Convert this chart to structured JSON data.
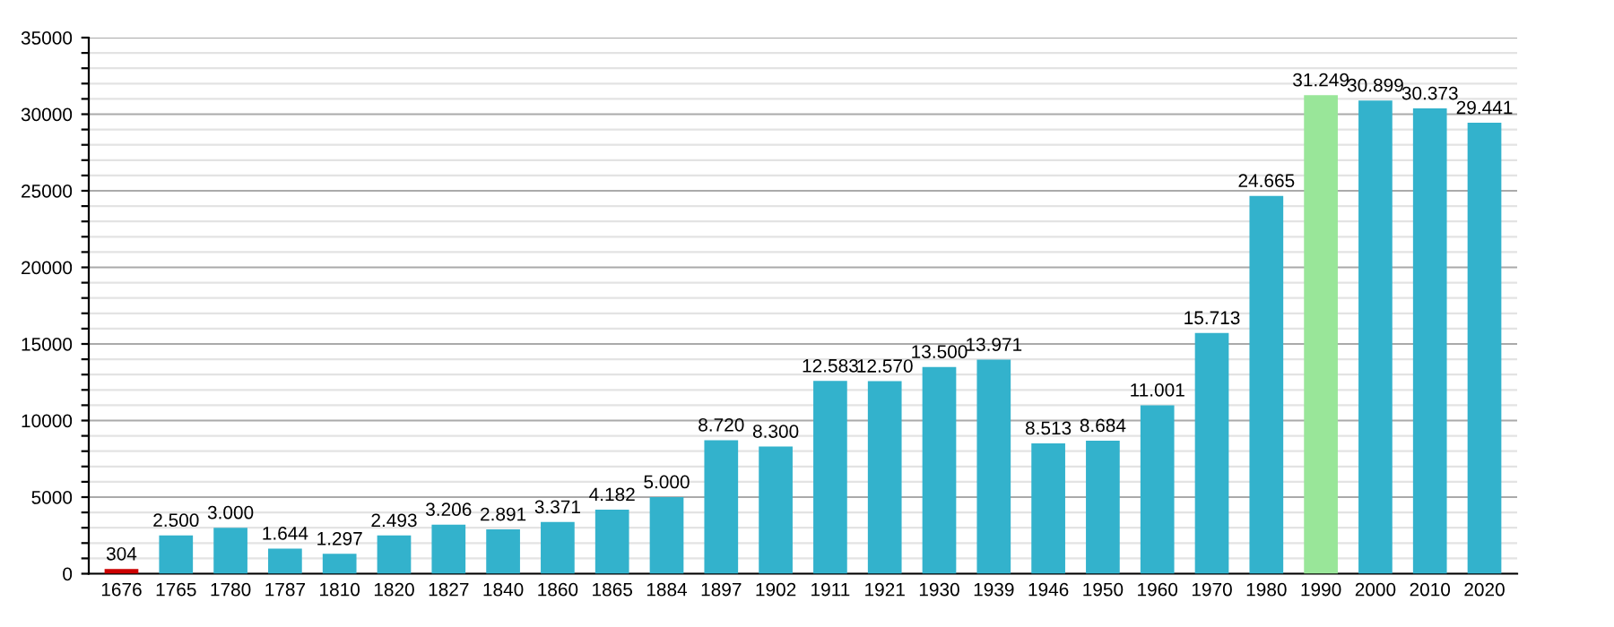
{
  "chart_data": {
    "type": "bar",
    "categories": [
      "1676",
      "1765",
      "1780",
      "1787",
      "1810",
      "1820",
      "1827",
      "1840",
      "1860",
      "1865",
      "1884",
      "1897",
      "1902",
      "1911",
      "1921",
      "1930",
      "1939",
      "1946",
      "1950",
      "1960",
      "1970",
      "1980",
      "1990",
      "2000",
      "2010",
      "2020"
    ],
    "values": [
      304,
      2500,
      3000,
      1644,
      1297,
      2493,
      3206,
      2891,
      3371,
      4182,
      5000,
      8720,
      8300,
      12583,
      12570,
      13500,
      13971,
      8513,
      8684,
      11001,
      15713,
      24665,
      31249,
      30899,
      30373,
      29441
    ],
    "value_labels": [
      "304",
      "2.500",
      "3.000",
      "1.644",
      "1.297",
      "2.493",
      "3.206",
      "2.891",
      "3.371",
      "4.182",
      "5.000",
      "8.720",
      "8.300",
      "12.583",
      "12.570",
      "13.500",
      "13.971",
      "8.513",
      "8.684",
      "11.001",
      "15.713",
      "24.665",
      "31.249",
      "30.899",
      "30.373",
      "29.441"
    ],
    "colors": [
      "#cc0000",
      "#33b2cc",
      "#33b2cc",
      "#33b2cc",
      "#33b2cc",
      "#33b2cc",
      "#33b2cc",
      "#33b2cc",
      "#33b2cc",
      "#33b2cc",
      "#33b2cc",
      "#33b2cc",
      "#33b2cc",
      "#33b2cc",
      "#33b2cc",
      "#33b2cc",
      "#33b2cc",
      "#33b2cc",
      "#33b2cc",
      "#33b2cc",
      "#33b2cc",
      "#33b2cc",
      "#99e699",
      "#33b2cc",
      "#33b2cc",
      "#33b2cc"
    ],
    "ylim": [
      0,
      35000
    ],
    "yticks": [
      0,
      {
        "value": 1000,
        "label": null
      },
      {
        "value": 2000,
        "label": null
      },
      {
        "value": 3000,
        "label": null
      },
      {
        "value": 4000,
        "label": null
      },
      5000,
      {
        "value": 6000,
        "label": null
      },
      {
        "value": 7000,
        "label": null
      },
      {
        "value": 8000,
        "label": null
      },
      {
        "value": 9000,
        "label": null
      },
      10000,
      {
        "value": 11000,
        "label": null
      },
      {
        "value": 12000,
        "label": null
      },
      {
        "value": 13000,
        "label": null
      },
      {
        "value": 14000,
        "label": null
      },
      15000,
      {
        "value": 16000,
        "label": null
      },
      {
        "value": 17000,
        "label": null
      },
      {
        "value": 18000,
        "label": null
      },
      {
        "value": 19000,
        "label": null
      },
      20000,
      {
        "value": 21000,
        "label": null
      },
      {
        "value": 22000,
        "label": null
      },
      {
        "value": 23000,
        "label": null
      },
      {
        "value": 24000,
        "label": null
      },
      25000,
      {
        "value": 26000,
        "label": null
      },
      {
        "value": 27000,
        "label": null
      },
      {
        "value": 28000,
        "label": null
      },
      {
        "value": 29000,
        "label": null
      },
      30000,
      {
        "value": 31000,
        "label": null
      },
      {
        "value": 32000,
        "label": null
      },
      {
        "value": 33000,
        "label": null
      },
      {
        "value": 34000,
        "label": null
      },
      35000
    ],
    "grid": "y"
  }
}
